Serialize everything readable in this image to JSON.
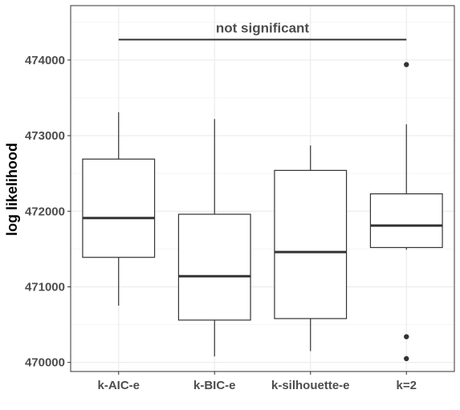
{
  "chart_data": {
    "type": "box",
    "ylabel": "log likelihood",
    "xlabel": "",
    "ylim": [
      469880,
      474720
    ],
    "y_ticks": [
      470000,
      471000,
      472000,
      473000,
      474000
    ],
    "y_tick_labels": [
      "470000",
      "471000",
      "472000",
      "473000",
      "474000"
    ],
    "grid": true,
    "categories": [
      "k-AIC-e",
      "k-BIC-e",
      "k-silhouette-e",
      "k=2"
    ],
    "boxes": [
      {
        "category": "k-AIC-e",
        "whisker_low": 470750,
        "q1": 471390,
        "median": 471910,
        "q3": 472690,
        "whisker_high": 473310,
        "outliers": []
      },
      {
        "category": "k-BIC-e",
        "whisker_low": 470080,
        "q1": 470560,
        "median": 471140,
        "q3": 471960,
        "whisker_high": 473220,
        "outliers": []
      },
      {
        "category": "k-silhouette-e",
        "whisker_low": 470150,
        "q1": 470580,
        "median": 471460,
        "q3": 472540,
        "whisker_high": 472870,
        "outliers": []
      },
      {
        "category": "k=2",
        "whisker_low": 471490,
        "q1": 471520,
        "median": 471810,
        "q3": 472230,
        "whisker_high": 473150,
        "outliers": [
          473940,
          470340,
          470050
        ]
      }
    ],
    "annotation": {
      "text": "not significant",
      "y": 474270,
      "from_category": "k-AIC-e",
      "to_category": "k=2"
    },
    "colors": {
      "box_fill": "#ffffff",
      "box_stroke": "#333333",
      "median": "#333333",
      "grid_major": "#ebebeb",
      "grid_minor": "#f5f5f5",
      "panel_border": "#333333"
    }
  }
}
